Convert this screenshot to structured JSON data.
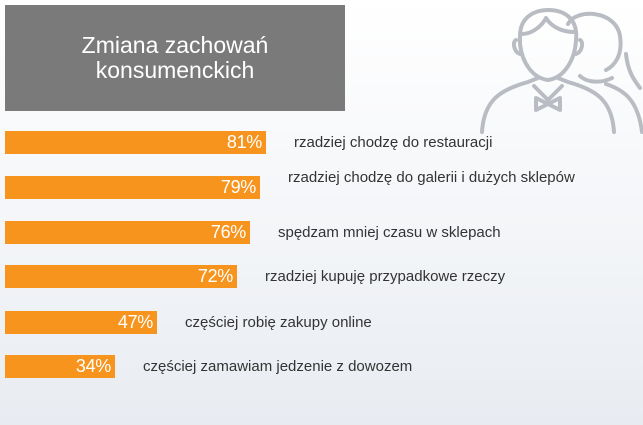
{
  "title": "Zmiana zachowań konsumenckich",
  "colors": {
    "bar": "#f7941d",
    "title_bg": "#7a7a7a",
    "icon": "#b9bdc3"
  },
  "icon": "people-silhouette-icon",
  "chart_data": {
    "type": "bar",
    "orientation": "horizontal",
    "unit": "%",
    "categories": [
      "rzadziej chodzę do restauracji",
      "rzadziej chodzę do galerii i dużych sklepów",
      "spędzam mniej czasu w sklepach",
      "rzadziej kupuję przypadkowe rzeczy",
      "częściej robię zakupy online",
      "częściej zamawiam jedzenie z dowozem"
    ],
    "values": [
      81,
      79,
      76,
      72,
      47,
      34
    ],
    "value_labels": [
      "81%",
      "79%",
      "76%",
      "72%",
      "47%",
      "34%"
    ],
    "grid": false
  }
}
